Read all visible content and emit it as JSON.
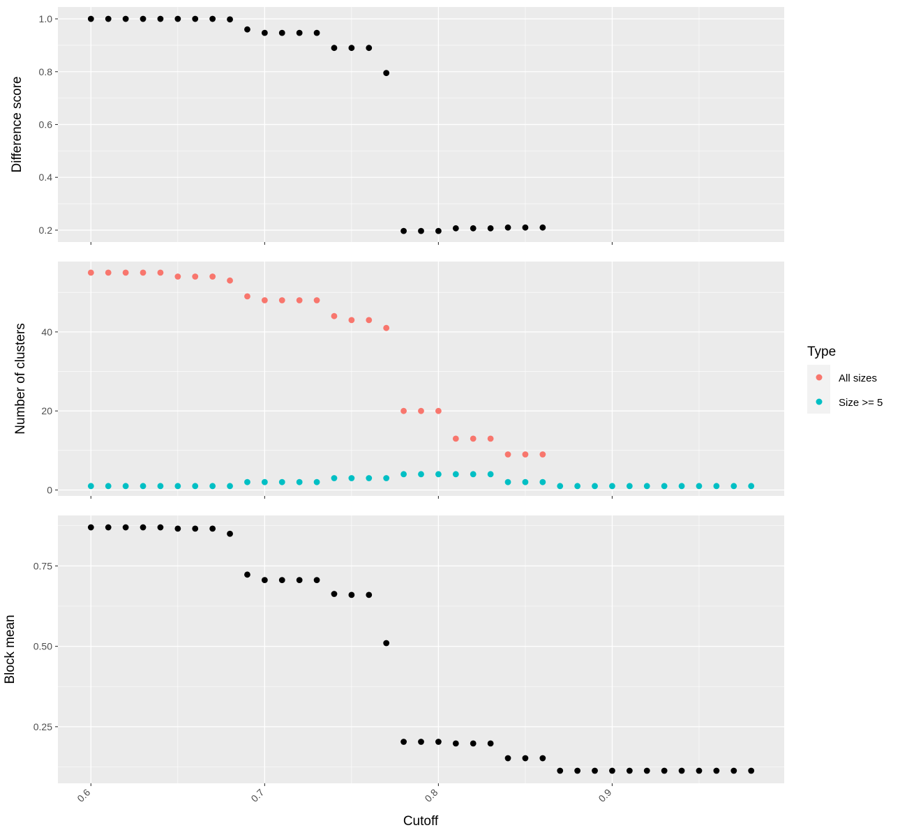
{
  "chart_data": [
    {
      "type": "scatter",
      "ylabel": "Difference score",
      "ylim": [
        0.155,
        1.045
      ],
      "yticks": [
        0.2,
        0.4,
        0.6,
        0.8,
        1.0
      ],
      "ytick_labels": [
        "0.2",
        "0.4",
        "0.6",
        "0.8",
        "1.0"
      ],
      "x": [
        0.6,
        0.61,
        0.62,
        0.63,
        0.64,
        0.65,
        0.66,
        0.67,
        0.68,
        0.69,
        0.7,
        0.71,
        0.72,
        0.73,
        0.74,
        0.75,
        0.76,
        0.77,
        0.78,
        0.79,
        0.8,
        0.81,
        0.82,
        0.83,
        0.84,
        0.85,
        0.86
      ],
      "series": [
        {
          "color": "#000000",
          "values": [
            1.0,
            1.0,
            1.0,
            1.0,
            1.0,
            1.0,
            1.0,
            1.0,
            0.998,
            0.96,
            0.947,
            0.947,
            0.947,
            0.947,
            0.89,
            0.89,
            0.89,
            0.795,
            0.197,
            0.197,
            0.197,
            0.207,
            0.207,
            0.207,
            0.21,
            0.21,
            0.21
          ]
        }
      ]
    },
    {
      "type": "scatter",
      "ylabel": "Number of clusters",
      "ylim": [
        -1.5,
        57.8
      ],
      "yticks": [
        0,
        20,
        40
      ],
      "ytick_labels": [
        "0",
        "20",
        "40"
      ],
      "x": [
        0.6,
        0.61,
        0.62,
        0.63,
        0.64,
        0.65,
        0.66,
        0.67,
        0.68,
        0.69,
        0.7,
        0.71,
        0.72,
        0.73,
        0.74,
        0.75,
        0.76,
        0.77,
        0.78,
        0.79,
        0.8,
        0.81,
        0.82,
        0.83,
        0.84,
        0.85,
        0.86,
        0.87,
        0.88,
        0.89,
        0.9,
        0.91,
        0.92,
        0.93,
        0.94,
        0.95,
        0.96,
        0.97,
        0.98
      ],
      "series": [
        {
          "name": "All sizes",
          "color": "#F8766D",
          "values": [
            55,
            55,
            55,
            55,
            55,
            54,
            54,
            54,
            53,
            49,
            48,
            48,
            48,
            48,
            44,
            43,
            43,
            41,
            20,
            20,
            20,
            13,
            13,
            13,
            9,
            9,
            9,
            null,
            null,
            null,
            null,
            null,
            null,
            null,
            null,
            null,
            null,
            null,
            null
          ]
        },
        {
          "name": "Size >= 5",
          "color": "#00BFC4",
          "values": [
            1,
            1,
            1,
            1,
            1,
            1,
            1,
            1,
            1,
            2,
            2,
            2,
            2,
            2,
            3,
            3,
            3,
            3,
            4,
            4,
            4,
            4,
            4,
            4,
            2,
            2,
            2,
            1,
            1,
            1,
            1,
            1,
            1,
            1,
            1,
            1,
            1,
            1,
            1
          ]
        }
      ]
    },
    {
      "type": "scatter",
      "ylabel": "Block mean",
      "xlabel": "Cutoff",
      "xlim": [
        0.581,
        0.999
      ],
      "xticks": [
        0.6,
        0.7,
        0.8,
        0.9
      ],
      "xtick_labels": [
        "0.6",
        "0.7",
        "0.8",
        "0.9"
      ],
      "ylim": [
        0.074,
        0.907
      ],
      "yticks": [
        0.25,
        0.5,
        0.75
      ],
      "ytick_labels": [
        "0.25",
        "0.50",
        "0.75"
      ],
      "x": [
        0.6,
        0.61,
        0.62,
        0.63,
        0.64,
        0.65,
        0.66,
        0.67,
        0.68,
        0.69,
        0.7,
        0.71,
        0.72,
        0.73,
        0.74,
        0.75,
        0.76,
        0.77,
        0.78,
        0.79,
        0.8,
        0.81,
        0.82,
        0.83,
        0.84,
        0.85,
        0.86,
        0.87,
        0.88,
        0.89,
        0.9,
        0.91,
        0.92,
        0.93,
        0.94,
        0.95,
        0.96,
        0.97,
        0.98
      ],
      "series": [
        {
          "color": "#000000",
          "values": [
            0.87,
            0.87,
            0.87,
            0.87,
            0.87,
            0.866,
            0.866,
            0.866,
            0.85,
            0.723,
            0.706,
            0.706,
            0.706,
            0.706,
            0.663,
            0.66,
            0.66,
            0.51,
            0.203,
            0.203,
            0.203,
            0.198,
            0.198,
            0.198,
            0.152,
            0.152,
            0.152,
            0.113,
            0.113,
            0.113,
            0.113,
            0.113,
            0.113,
            0.113,
            0.113,
            0.113,
            0.113,
            0.113,
            0.113
          ]
        }
      ]
    }
  ],
  "legend": {
    "title": "Type",
    "placement": "right",
    "items": [
      {
        "label": "All sizes",
        "color": "#F8766D"
      },
      {
        "label": "Size >= 5",
        "color": "#00BFC4"
      }
    ]
  },
  "style": {
    "panel_background": "#EBEBEB",
    "grid_color": "#FFFFFF",
    "point_default_color": "#000000"
  }
}
